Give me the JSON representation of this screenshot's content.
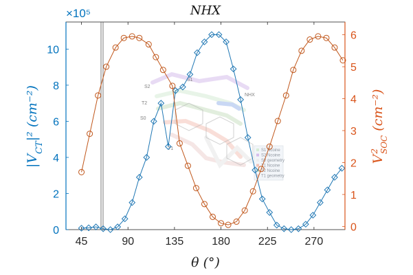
{
  "chart_data": {
    "type": "line",
    "title": "NHX",
    "xlabel": "θ (°)",
    "ylabel_left_base": "|V",
    "ylabel_left_sub": "CT",
    "ylabel_left_rest": "|² (cm⁻²)",
    "ylabel_right_base": "V",
    "ylabel_right_sup": "2",
    "ylabel_right_sub": "SOC",
    "ylabel_right_rest": " (cm⁻²)",
    "left_exponent": "×10⁵",
    "xlim": [
      30,
      300
    ],
    "ylim_left": [
      0,
      11.5
    ],
    "ylim_right": [
      -0.1,
      6.4
    ],
    "x_ticks": [
      "45",
      "90",
      "135",
      "180",
      "225",
      "270"
    ],
    "y_left_ticks": [
      "0",
      "2",
      "4",
      "6",
      "8",
      "10"
    ],
    "y_right_ticks": [
      "0",
      "1",
      "2",
      "3",
      "4",
      "5",
      "6"
    ],
    "colors": {
      "left_series": "#1f77b4",
      "right_series": "#c0561a",
      "axis_left": "#0072bd",
      "axis_right": "#d95319"
    },
    "series": [
      {
        "axis": "left",
        "marker": "diamond",
        "x": [
          45,
          52,
          59,
          66,
          73,
          80,
          87,
          94,
          101,
          108,
          115,
          122,
          129,
          136,
          143,
          150,
          157,
          164,
          171,
          178,
          185,
          192,
          199,
          206,
          213,
          220,
          227,
          234,
          241,
          248,
          255,
          262,
          269,
          276,
          283,
          290,
          297
        ],
        "values": [
          0.08,
          0.1,
          0.15,
          0.05,
          0.0,
          0.15,
          0.6,
          1.5,
          2.9,
          4.0,
          6.0,
          7.0,
          4.6,
          7.7,
          7.9,
          8.6,
          9.8,
          10.4,
          10.8,
          10.8,
          10.4,
          8.9,
          7.2,
          5.1,
          3.3,
          1.7,
          0.95,
          0.25,
          0.05,
          0.0,
          0.05,
          0.3,
          0.8,
          1.5,
          2.2,
          2.9,
          3.4
        ]
      },
      {
        "axis": "right",
        "marker": "circle",
        "x": [
          45,
          53,
          61,
          69,
          78,
          86,
          94,
          101,
          110,
          117,
          124,
          133,
          140,
          148,
          156,
          164,
          172,
          180,
          187,
          195,
          203,
          211,
          219,
          227,
          235,
          243,
          250,
          258,
          266,
          274,
          282,
          290,
          298
        ],
        "values": [
          1.7,
          2.9,
          4.1,
          5.0,
          5.6,
          5.9,
          5.95,
          5.9,
          5.7,
          5.3,
          4.9,
          4.4,
          2.6,
          1.9,
          1.2,
          0.7,
          0.3,
          0.1,
          0.05,
          0.15,
          0.5,
          1.1,
          1.8,
          2.5,
          3.3,
          4.1,
          4.9,
          5.5,
          5.85,
          5.95,
          5.9,
          5.6,
          5.2
        ]
      }
    ]
  },
  "inset": {
    "mol_labels": [
      "S2",
      "S1",
      "T2",
      "S0",
      "T1",
      "NHX"
    ],
    "legend_items": [
      "S1 Ncoine",
      "S2 Ncoine",
      "S0 geometry",
      "T1 Ncoine",
      "T2 Ncoine",
      "T1 geometry"
    ]
  }
}
